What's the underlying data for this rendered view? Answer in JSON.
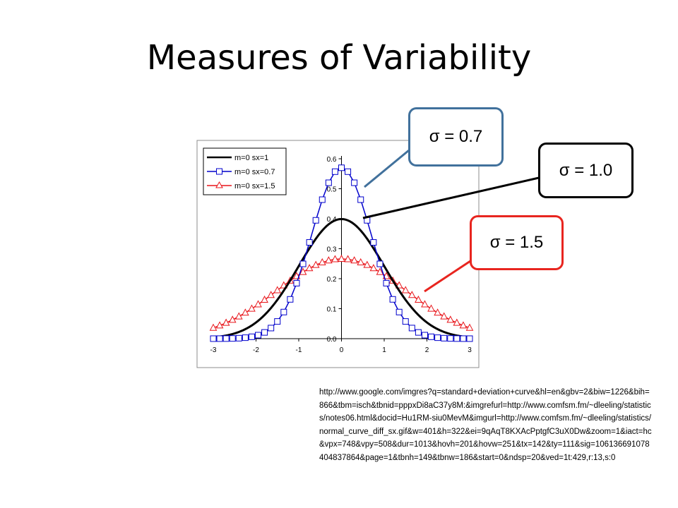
{
  "slide": {
    "title": "Measures of Variability",
    "source_url": "http://www.google.com/imgres?q=standard+deviation+curve&hl=en&gbv=2&biw=1226&bih=866&tbm=isch&tbnid=pppxDi8aC37y8M:&imgrefurl=http://www.comfsm.fm/~dleeling/statistics/notes06.html&docid=Hu1RM-siu0MevM&imgurl=http://www.comfsm.fm/~dleeling/statistics/normal_curve_diff_sx.gif&w=401&h=322&ei=9qAqT8KXAcPptgfC3uX0Dw&zoom=1&iact=hc&vpx=748&vpy=508&dur=1013&hovh=201&hovw=251&tx=142&ty=111&sig=106136691078404837864&page=1&tbnh=149&tbnw=186&start=0&ndsp=20&ved=1t:429,r:13,s:0"
  },
  "callouts": [
    {
      "text": "σ = 0.7",
      "color": "#41719C"
    },
    {
      "text": "σ = 1.0",
      "color": "#000000"
    },
    {
      "text": "σ = 1.5",
      "color": "#E8251F"
    }
  ],
  "chart_data": {
    "type": "line",
    "xlim": [
      -3,
      3
    ],
    "ylim": [
      0,
      0.6
    ],
    "x_ticks": [
      "-3",
      "-2",
      "-1",
      "0",
      "1",
      "2",
      "3"
    ],
    "y_ticks": [
      "0.0",
      "0.1",
      "0.2",
      "0.3",
      "0.4",
      "0.5",
      "0.6"
    ],
    "grid": false,
    "legend_position": "top-left",
    "series": [
      {
        "name": "m=0 sx=1",
        "mean": 0,
        "sd": 1.0,
        "color": "#000000",
        "marker": "none"
      },
      {
        "name": "m=0 sx=0.7",
        "mean": 0,
        "sd": 0.7,
        "color": "#0000CC",
        "marker": "square"
      },
      {
        "name": "m=0 sx=1.5",
        "mean": 0,
        "sd": 1.5,
        "color": "#E8151A",
        "marker": "triangle"
      }
    ]
  }
}
